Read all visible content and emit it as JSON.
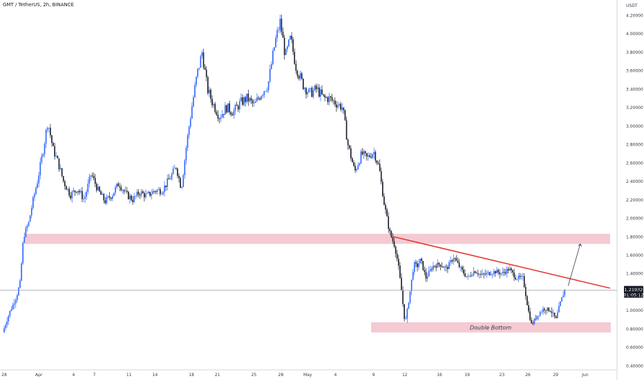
{
  "header": {
    "title": "GMT / TetherUS, 2h, BINANCE"
  },
  "chart_data": {
    "type": "candlestick",
    "symbol": "GMT / TetherUS",
    "interval": "2h",
    "exchange": "BINANCE",
    "unit_label": "USDT",
    "ylim": [
      0.38,
      4.22
    ],
    "y_ticks": [
      "4.20000",
      "4.00000",
      "3.80000",
      "3.60000",
      "3.40000",
      "3.20000",
      "3.00000",
      "2.80000",
      "2.60000",
      "2.40000",
      "2.20000",
      "2.00000",
      "1.80000",
      "1.60000",
      "1.40000",
      "1.20000",
      "1.00000",
      "0.80000",
      "0.60000",
      "0.40000"
    ],
    "x_ticks": [
      "28",
      "Apr",
      "4",
      "7",
      "11",
      "14",
      "18",
      "21",
      "25",
      "28",
      "May",
      "4",
      "9",
      "12",
      "16",
      "19",
      "23",
      "26",
      "29",
      "Jun"
    ],
    "current_price": "1.21932",
    "countdown": "01:05:12",
    "price_path": [
      [
        0.0,
        0.76
      ],
      [
        0.4,
        0.98
      ],
      [
        0.8,
        1.15
      ],
      [
        1.0,
        1.3
      ],
      [
        1.2,
        1.8
      ],
      [
        1.5,
        1.95
      ],
      [
        1.7,
        2.15
      ],
      [
        2.0,
        2.4
      ],
      [
        2.3,
        2.7
      ],
      [
        2.6,
        3.05
      ],
      [
        2.9,
        2.75
      ],
      [
        3.2,
        2.6
      ],
      [
        3.5,
        2.4
      ],
      [
        3.9,
        2.25
      ],
      [
        4.3,
        2.32
      ],
      [
        4.7,
        2.2
      ],
      [
        5.1,
        2.48
      ],
      [
        5.5,
        2.3
      ],
      [
        5.9,
        2.18
      ],
      [
        6.3,
        2.25
      ],
      [
        6.7,
        2.38
      ],
      [
        7.1,
        2.26
      ],
      [
        7.5,
        2.2
      ],
      [
        7.9,
        2.28
      ],
      [
        8.3,
        2.24
      ],
      [
        8.8,
        2.3
      ],
      [
        9.2,
        2.3
      ],
      [
        9.7,
        2.45
      ],
      [
        10.0,
        2.56
      ],
      [
        10.3,
        2.32
      ],
      [
        10.6,
        2.8
      ],
      [
        10.9,
        3.2
      ],
      [
        11.2,
        3.55
      ],
      [
        11.5,
        3.8
      ],
      [
        11.8,
        3.4
      ],
      [
        12.1,
        3.25
      ],
      [
        12.5,
        3.1
      ],
      [
        12.9,
        3.2
      ],
      [
        13.3,
        3.15
      ],
      [
        13.7,
        3.25
      ],
      [
        14.1,
        3.3
      ],
      [
        14.5,
        3.22
      ],
      [
        14.9,
        3.35
      ],
      [
        15.3,
        3.45
      ],
      [
        15.7,
        3.9
      ],
      [
        16.0,
        4.13
      ],
      [
        16.3,
        3.75
      ],
      [
        16.6,
        3.95
      ],
      [
        16.9,
        3.65
      ],
      [
        17.3,
        3.45
      ],
      [
        17.7,
        3.35
      ],
      [
        18.1,
        3.4
      ],
      [
        18.5,
        3.3
      ],
      [
        18.8,
        3.3
      ],
      [
        19.2,
        3.25
      ],
      [
        19.6,
        3.2
      ],
      [
        19.9,
        2.8
      ],
      [
        20.3,
        2.5
      ],
      [
        20.7,
        2.7
      ],
      [
        21.0,
        2.65
      ],
      [
        21.4,
        2.72
      ],
      [
        21.7,
        2.55
      ],
      [
        22.0,
        2.15
      ],
      [
        22.3,
        1.85
      ],
      [
        22.6,
        1.7
      ],
      [
        22.8,
        1.5
      ],
      [
        23.0,
        1.2
      ],
      [
        23.2,
        0.85
      ],
      [
        23.45,
        1.15
      ],
      [
        23.7,
        1.5
      ],
      [
        23.9,
        1.48
      ],
      [
        24.1,
        1.55
      ],
      [
        24.4,
        1.35
      ],
      [
        24.8,
        1.48
      ],
      [
        25.2,
        1.5
      ],
      [
        25.6,
        1.45
      ],
      [
        26.0,
        1.58
      ],
      [
        26.4,
        1.45
      ],
      [
        26.8,
        1.35
      ],
      [
        27.2,
        1.43
      ],
      [
        27.6,
        1.38
      ],
      [
        28.0,
        1.4
      ],
      [
        28.4,
        1.42
      ],
      [
        28.8,
        1.4
      ],
      [
        29.2,
        1.45
      ],
      [
        29.6,
        1.35
      ],
      [
        30.0,
        1.35
      ],
      [
        30.3,
        1.0
      ],
      [
        30.5,
        0.84
      ],
      [
        30.8,
        0.94
      ],
      [
        31.2,
        1.02
      ],
      [
        31.6,
        1.0
      ],
      [
        31.9,
        0.9
      ],
      [
        32.1,
        1.05
      ],
      [
        32.4,
        1.22
      ]
    ],
    "annotations": {
      "support_zone_label": "Double Bottom",
      "resistance_zone": [
        1.72,
        1.83
      ],
      "support_zone": [
        0.76,
        0.87
      ],
      "trendline": [
        [
          22.4,
          1.8
        ],
        [
          34.0,
          1.24
        ]
      ],
      "projection_arrow": [
        [
          32.4,
          1.22
        ],
        [
          33.1,
          1.72
        ]
      ]
    },
    "colors": {
      "up": "#2962ff",
      "down": "#131722",
      "zone_fill": "#f2c1cb",
      "trendline": "#e53935",
      "price_line": "#9aa0a8",
      "price_box": "#131722"
    }
  }
}
